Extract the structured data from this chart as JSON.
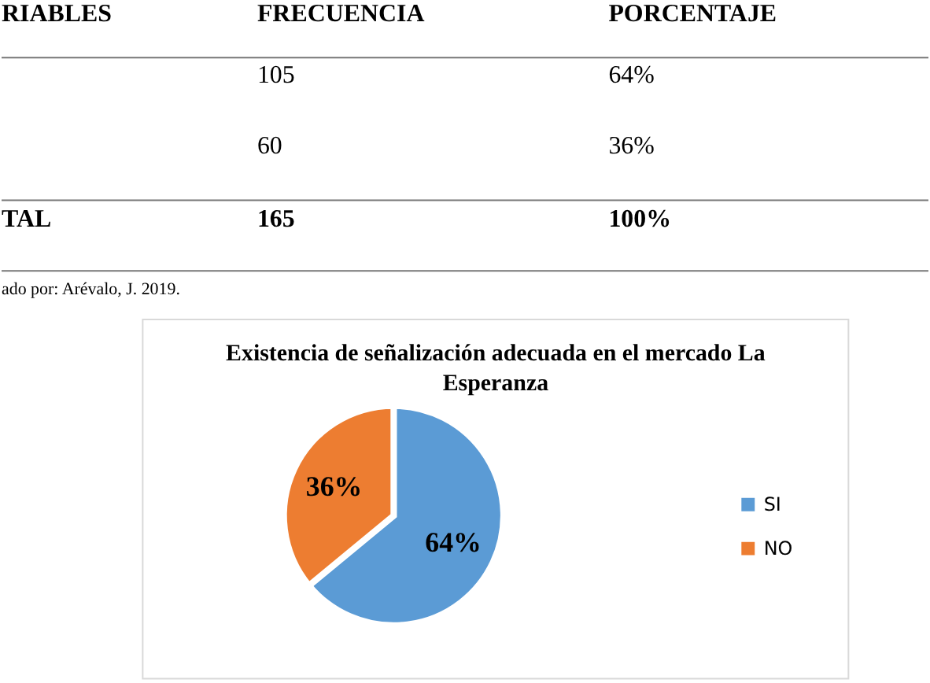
{
  "chart_data": {
    "type": "pie",
    "title": "Existencia de señalización adecuada en el mercado La Esperanza",
    "categories": [
      "SI",
      "NO"
    ],
    "values": [
      64,
      36
    ],
    "colors": [
      "#5b9bd5",
      "#ed7d31"
    ],
    "value_labels": [
      "64%",
      "36%"
    ],
    "legend": "right",
    "annotations": [
      "RIABLES",
      "FRECUENCIA",
      "PORCENTAJE",
      "105",
      "64%",
      "60",
      "36%",
      "TAL",
      "165",
      "100%",
      "ado por: Arévalo, J. 2019."
    ]
  }
}
